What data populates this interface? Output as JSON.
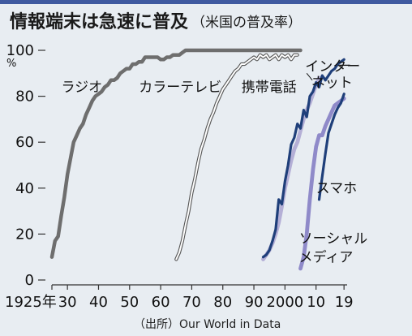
{
  "chart_data": {
    "type": "line",
    "title": "情報端末は急速に普及",
    "subtitle": "（米国の普及率）",
    "source": "（出所）Our World in Data",
    "y_unit": "%",
    "ylim": [
      0,
      100
    ],
    "xlim": [
      1925,
      2020
    ],
    "yticks": [
      0,
      20,
      40,
      60,
      80,
      100
    ],
    "xticks": [
      {
        "value": 1925,
        "label": "1925年"
      },
      {
        "value": 1930,
        "label": "30"
      },
      {
        "value": 1940,
        "label": "40"
      },
      {
        "value": 1950,
        "label": "50"
      },
      {
        "value": 1960,
        "label": "60"
      },
      {
        "value": 1970,
        "label": "70"
      },
      {
        "value": 1980,
        "label": "80"
      },
      {
        "value": 1990,
        "label": "90"
      },
      {
        "value": 2000,
        "label": "2000"
      },
      {
        "value": 2010,
        "label": "10"
      },
      {
        "value": 2019,
        "label": "19"
      }
    ],
    "series": [
      {
        "name": "ラジオ",
        "color": "#6e6e6e",
        "style": "solid",
        "points": [
          [
            1925,
            10
          ],
          [
            1926,
            17
          ],
          [
            1927,
            19
          ],
          [
            1928,
            28
          ],
          [
            1929,
            36
          ],
          [
            1930,
            46
          ],
          [
            1931,
            53
          ],
          [
            1932,
            60
          ],
          [
            1933,
            63
          ],
          [
            1934,
            66
          ],
          [
            1935,
            68
          ],
          [
            1936,
            72
          ],
          [
            1937,
            75
          ],
          [
            1938,
            78
          ],
          [
            1939,
            80
          ],
          [
            1940,
            81
          ],
          [
            1941,
            82
          ],
          [
            1942,
            84
          ],
          [
            1943,
            85
          ],
          [
            1944,
            87
          ],
          [
            1945,
            87
          ],
          [
            1946,
            88
          ],
          [
            1947,
            90
          ],
          [
            1948,
            91
          ],
          [
            1949,
            92
          ],
          [
            1950,
            92
          ],
          [
            1951,
            94
          ],
          [
            1952,
            94
          ],
          [
            1953,
            95
          ],
          [
            1954,
            95
          ],
          [
            1955,
            97
          ],
          [
            1956,
            97
          ],
          [
            1957,
            97
          ],
          [
            1958,
            97
          ],
          [
            1959,
            97
          ],
          [
            1960,
            96
          ],
          [
            1961,
            96
          ],
          [
            1962,
            97
          ],
          [
            1963,
            97
          ],
          [
            1964,
            98
          ],
          [
            1965,
            98
          ],
          [
            1966,
            98
          ],
          [
            1967,
            99
          ],
          [
            1968,
            100
          ],
          [
            1975,
            100
          ],
          [
            1985,
            100
          ],
          [
            1995,
            100
          ],
          [
            2005,
            100
          ]
        ]
      },
      {
        "name": "カラーテレビ",
        "color": "#555555",
        "style": "outline",
        "points": [
          [
            1965,
            9
          ],
          [
            1966,
            12
          ],
          [
            1967,
            17
          ],
          [
            1968,
            24
          ],
          [
            1969,
            30
          ],
          [
            1970,
            38
          ],
          [
            1971,
            44
          ],
          [
            1972,
            51
          ],
          [
            1973,
            57
          ],
          [
            1974,
            61
          ],
          [
            1975,
            66
          ],
          [
            1976,
            70
          ],
          [
            1977,
            73
          ],
          [
            1978,
            77
          ],
          [
            1979,
            80
          ],
          [
            1980,
            83
          ],
          [
            1981,
            85
          ],
          [
            1982,
            87
          ],
          [
            1983,
            89
          ],
          [
            1984,
            91
          ],
          [
            1985,
            92
          ],
          [
            1986,
            94
          ],
          [
            1987,
            94
          ],
          [
            1988,
            95
          ],
          [
            1989,
            96
          ],
          [
            1990,
            97
          ],
          [
            1991,
            96
          ],
          [
            1992,
            98
          ],
          [
            1993,
            97
          ],
          [
            1994,
            98
          ],
          [
            1995,
            96
          ],
          [
            1996,
            97
          ],
          [
            1997,
            98
          ],
          [
            1998,
            96
          ],
          [
            1999,
            98
          ],
          [
            2000,
            97
          ],
          [
            2001,
            98
          ],
          [
            2002,
            96
          ],
          [
            2003,
            98
          ],
          [
            2004,
            98
          ]
        ]
      },
      {
        "name": "携帯電話",
        "color": "#b4afd6",
        "style": "solid",
        "points": [
          [
            1993,
            9
          ],
          [
            1994,
            11
          ],
          [
            1995,
            13
          ],
          [
            1996,
            16
          ],
          [
            1997,
            20
          ],
          [
            1998,
            25
          ],
          [
            1999,
            32
          ],
          [
            2000,
            40
          ],
          [
            2001,
            46
          ],
          [
            2002,
            52
          ],
          [
            2003,
            57
          ],
          [
            2004,
            60
          ],
          [
            2005,
            65
          ],
          [
            2006,
            70
          ],
          [
            2007,
            74
          ],
          [
            2008,
            77
          ],
          [
            2009,
            81
          ],
          [
            2010,
            85
          ],
          [
            2011,
            88
          ]
        ]
      },
      {
        "name": "インターネット",
        "color": "#1f3f7a",
        "style": "solid",
        "points": [
          [
            1993,
            10
          ],
          [
            1994,
            11
          ],
          [
            1995,
            13
          ],
          [
            1996,
            17
          ],
          [
            1997,
            22
          ],
          [
            1998,
            35
          ],
          [
            1999,
            33
          ],
          [
            2000,
            43
          ],
          [
            2001,
            50
          ],
          [
            2002,
            59
          ],
          [
            2003,
            62
          ],
          [
            2004,
            68
          ],
          [
            2005,
            66
          ],
          [
            2006,
            74
          ],
          [
            2007,
            71
          ],
          [
            2008,
            80
          ],
          [
            2009,
            82
          ],
          [
            2010,
            86
          ],
          [
            2011,
            84
          ],
          [
            2012,
            89
          ],
          [
            2013,
            87
          ],
          [
            2014,
            89
          ],
          [
            2015,
            91
          ],
          [
            2016,
            92
          ],
          [
            2017,
            94
          ],
          [
            2018,
            95
          ],
          [
            2019,
            96
          ]
        ]
      },
      {
        "name": "ソーシャルメディア",
        "color": "#8f8ac9",
        "style": "solid",
        "points": [
          [
            2005,
            5
          ],
          [
            2006,
            10
          ],
          [
            2007,
            20
          ],
          [
            2008,
            35
          ],
          [
            2009,
            48
          ],
          [
            2010,
            58
          ],
          [
            2011,
            63
          ],
          [
            2012,
            63
          ],
          [
            2013,
            67
          ],
          [
            2014,
            70
          ],
          [
            2015,
            73
          ],
          [
            2016,
            76
          ],
          [
            2017,
            77
          ],
          [
            2018,
            78
          ],
          [
            2019,
            79
          ]
        ]
      },
      {
        "name": "スマホ",
        "color": "#1f3f7a",
        "style": "solid",
        "points": [
          [
            2011,
            35
          ],
          [
            2012,
            45
          ],
          [
            2013,
            55
          ],
          [
            2014,
            64
          ],
          [
            2015,
            68
          ],
          [
            2016,
            72
          ],
          [
            2017,
            75
          ],
          [
            2018,
            77
          ],
          [
            2019,
            81
          ]
        ]
      }
    ],
    "labels": [
      {
        "series": "ラジオ",
        "text": "ラジオ",
        "at": [
          1928,
          82
        ]
      },
      {
        "series": "カラーテレビ",
        "text": "カラーテレビ",
        "at": [
          1953,
          82
        ]
      },
      {
        "series": "携帯電話",
        "text": "携帯電話",
        "at": [
          1986,
          82
        ]
      },
      {
        "series": "インターネット",
        "text": "インター",
        "at": [
          2006.5,
          91
        ]
      },
      {
        "series": "インターネット",
        "text": "ネット",
        "at": [
          2008.5,
          84
        ]
      },
      {
        "series": "スマホ",
        "text": "スマホ",
        "at": [
          2010,
          38
        ]
      },
      {
        "series": "ソーシャルメディア",
        "text": "ソーシャル",
        "at": [
          2004.5,
          16
        ]
      },
      {
        "series": "ソーシャルメディア",
        "text": "メディア",
        "at": [
          2004.5,
          8
        ]
      }
    ]
  }
}
